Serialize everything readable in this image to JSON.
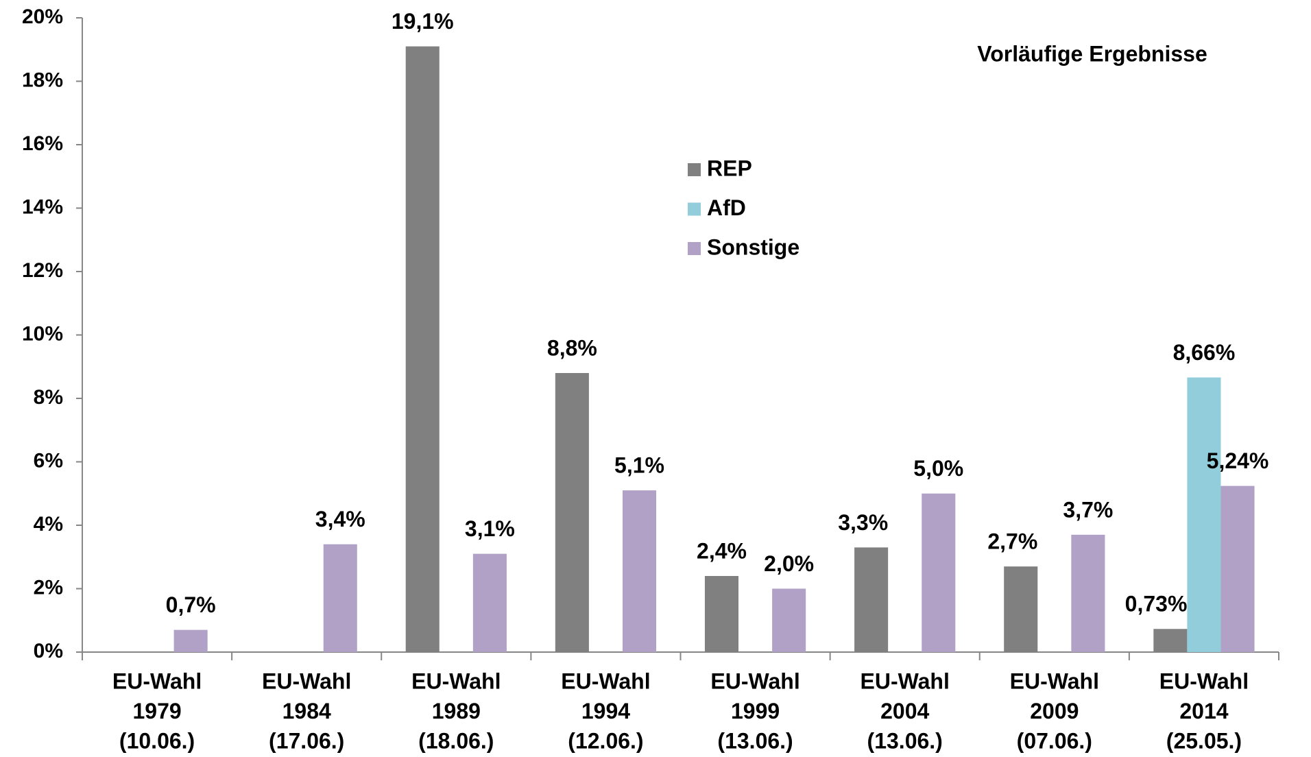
{
  "chart_data": {
    "type": "bar",
    "title": "Vorläufige Ergebnisse",
    "categories": [
      [
        "EU-Wahl",
        "1979",
        "(10.06.)"
      ],
      [
        "EU-Wahl",
        "1984",
        "(17.06.)"
      ],
      [
        "EU-Wahl",
        "1989",
        "(18.06.)"
      ],
      [
        "EU-Wahl",
        "1994",
        "(12.06.)"
      ],
      [
        "EU-Wahl",
        "1999",
        "(13.06.)"
      ],
      [
        "EU-Wahl",
        "2004",
        "(13.06.)"
      ],
      [
        "EU-Wahl",
        "2009",
        "(07.06.)"
      ],
      [
        "EU-Wahl",
        "2014",
        "(25.05.)"
      ]
    ],
    "series": [
      {
        "name": "REP",
        "color": "#808080",
        "values": [
          null,
          null,
          19.1,
          8.8,
          2.4,
          3.3,
          2.7,
          0.73
        ],
        "value_labels": [
          null,
          null,
          "19,1%",
          "8,8%",
          "2,4%",
          "3,3%",
          "2,7%",
          "0,73%"
        ]
      },
      {
        "name": "AfD",
        "color": "#92cddc",
        "values": [
          null,
          null,
          null,
          null,
          null,
          null,
          null,
          8.66
        ],
        "value_labels": [
          null,
          null,
          null,
          null,
          null,
          null,
          null,
          "8,66%"
        ]
      },
      {
        "name": "Sonstige",
        "color": "#b2a1c7",
        "values": [
          0.7,
          3.4,
          3.1,
          5.1,
          2.0,
          5.0,
          3.7,
          5.24
        ],
        "value_labels": [
          "0,7%",
          "3,4%",
          "3,1%",
          "5,1%",
          "2,0%",
          "5,0%",
          "3,7%",
          "5,24%"
        ]
      }
    ],
    "ylim": [
      0,
      20
    ],
    "yticks": [
      {
        "value": 0,
        "label": "0%"
      },
      {
        "value": 2,
        "label": "2%"
      },
      {
        "value": 4,
        "label": "4%"
      },
      {
        "value": 6,
        "label": "6%"
      },
      {
        "value": 8,
        "label": "8%"
      },
      {
        "value": 10,
        "label": "10%"
      },
      {
        "value": 12,
        "label": "12%"
      },
      {
        "value": 14,
        "label": "14%"
      },
      {
        "value": 16,
        "label": "16%"
      },
      {
        "value": 18,
        "label": "18%"
      },
      {
        "value": 20,
        "label": "20%"
      }
    ],
    "grid": false
  }
}
